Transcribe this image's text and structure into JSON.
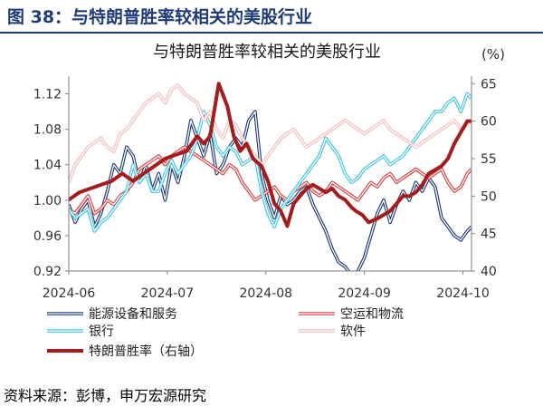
{
  "figure_title": "图 38：与特朗普胜率较相关的美股行业",
  "source": "资料来源：彭博，申万宏源研究",
  "chart_data": {
    "type": "line",
    "title": "与特朗普胜率较相关的美股行业",
    "x_ticks": [
      "2024-06",
      "2024-07",
      "2024-08",
      "2024-09",
      "2024-10"
    ],
    "y_left": {
      "lim": [
        0.92,
        1.14
      ],
      "ticks": [
        0.92,
        0.96,
        1.0,
        1.04,
        1.08,
        1.12
      ]
    },
    "y_right": {
      "unit": "(%)",
      "lim": [
        40,
        66
      ],
      "ticks": [
        40,
        45,
        50,
        55,
        60,
        65
      ]
    },
    "series": [
      {
        "name": "能源设备和服务",
        "axis": "left",
        "color": "#1f3b78",
        "values": [
          [
            0,
            0.995
          ],
          [
            3,
            0.975
          ],
          [
            6,
            0.99
          ],
          [
            9,
            1.0
          ],
          [
            12,
            0.97
          ],
          [
            15,
            0.985
          ],
          [
            18,
            1.01
          ],
          [
            21,
            1.04
          ],
          [
            24,
            1.03
          ],
          [
            27,
            1.06
          ],
          [
            30,
            1.05
          ],
          [
            33,
            1.02
          ],
          [
            36,
            1.04
          ],
          [
            39,
            1.01
          ],
          [
            42,
            1.03
          ],
          [
            45,
            1.0
          ],
          [
            48,
            1.04
          ],
          [
            51,
            1.02
          ],
          [
            54,
            1.05
          ],
          [
            57,
            1.09
          ],
          [
            60,
            1.07
          ],
          [
            63,
            1.05
          ],
          [
            66,
            1.075
          ],
          [
            69,
            1.03
          ],
          [
            72,
            1.04
          ],
          [
            75,
            1.06
          ],
          [
            78,
            1.07
          ],
          [
            81,
            1.06
          ],
          [
            84,
            1.09
          ],
          [
            87,
            1.1
          ],
          [
            90,
            1.03
          ],
          [
            93,
            1.0
          ],
          [
            96,
            0.98
          ],
          [
            99,
            1.005
          ],
          [
            102,
            0.995
          ],
          [
            105,
            1.0
          ],
          [
            108,
            1.01
          ],
          [
            111,
            1.015
          ],
          [
            114,
            0.995
          ],
          [
            117,
            0.98
          ],
          [
            120,
            0.965
          ],
          [
            123,
            0.945
          ],
          [
            126,
            0.93
          ],
          [
            129,
            0.925
          ],
          [
            132,
            0.915
          ],
          [
            135,
            0.92
          ],
          [
            138,
            0.935
          ],
          [
            141,
            0.96
          ],
          [
            144,
            0.985
          ],
          [
            147,
            1.0
          ],
          [
            150,
            0.975
          ],
          [
            153,
            0.995
          ],
          [
            156,
            1.01
          ],
          [
            159,
            1.0
          ],
          [
            162,
            1.02
          ],
          [
            165,
            1.01
          ],
          [
            168,
            1.025
          ],
          [
            171,
            1.015
          ],
          [
            174,
            0.98
          ],
          [
            177,
            0.97
          ],
          [
            180,
            0.96
          ],
          [
            183,
            0.955
          ],
          [
            186,
            0.965
          ],
          [
            188,
            0.97
          ]
        ]
      },
      {
        "name": "空运和物流",
        "axis": "left",
        "color": "#d94040",
        "values": [
          [
            0,
            0.99
          ],
          [
            3,
            0.985
          ],
          [
            6,
            0.995
          ],
          [
            9,
            1.005
          ],
          [
            12,
            0.985
          ],
          [
            15,
            0.99
          ],
          [
            18,
            1.0
          ],
          [
            21,
            0.995
          ],
          [
            24,
            1.005
          ],
          [
            27,
            1.01
          ],
          [
            30,
            1.02
          ],
          [
            33,
            1.035
          ],
          [
            36,
            1.04
          ],
          [
            39,
            1.045
          ],
          [
            42,
            1.05
          ],
          [
            45,
            1.04
          ],
          [
            48,
            1.05
          ],
          [
            51,
            1.055
          ],
          [
            54,
            1.06
          ],
          [
            57,
            1.055
          ],
          [
            60,
            1.05
          ],
          [
            63,
            1.045
          ],
          [
            66,
            1.04
          ],
          [
            69,
            1.035
          ],
          [
            72,
            1.03
          ],
          [
            75,
            1.04
          ],
          [
            78,
            1.035
          ],
          [
            81,
            1.02
          ],
          [
            84,
            1.01
          ],
          [
            87,
            1.0
          ],
          [
            90,
            1.005
          ],
          [
            93,
            1.01
          ],
          [
            96,
            1.015
          ],
          [
            99,
            1.005
          ],
          [
            102,
            1.0
          ],
          [
            105,
            1.01
          ],
          [
            108,
            1.015
          ],
          [
            111,
            1.02
          ],
          [
            114,
            1.01
          ],
          [
            117,
            1.005
          ],
          [
            120,
            1.01
          ],
          [
            123,
            1.02
          ],
          [
            126,
            1.015
          ],
          [
            129,
            1.01
          ],
          [
            132,
            1.005
          ],
          [
            135,
            1.0
          ],
          [
            138,
            1.01
          ],
          [
            141,
            1.02
          ],
          [
            144,
            1.015
          ],
          [
            147,
            1.025
          ],
          [
            150,
            1.03
          ],
          [
            153,
            1.02
          ],
          [
            156,
            1.025
          ],
          [
            159,
            1.03
          ],
          [
            162,
            1.035
          ],
          [
            165,
            1.03
          ],
          [
            168,
            1.025
          ],
          [
            171,
            1.03
          ],
          [
            174,
            1.035
          ],
          [
            177,
            1.02
          ],
          [
            180,
            1.01
          ],
          [
            183,
            1.015
          ],
          [
            186,
            1.03
          ],
          [
            188,
            1.035
          ]
        ]
      },
      {
        "name": "银行",
        "axis": "left",
        "color": "#3ec6df",
        "values": [
          [
            0,
            0.99
          ],
          [
            3,
            0.98
          ],
          [
            6,
            0.985
          ],
          [
            9,
            0.99
          ],
          [
            12,
            0.965
          ],
          [
            15,
            0.975
          ],
          [
            18,
            0.98
          ],
          [
            21,
            0.99
          ],
          [
            24,
            1.0
          ],
          [
            27,
            1.01
          ],
          [
            30,
            1.04
          ],
          [
            33,
            1.02
          ],
          [
            36,
            1.03
          ],
          [
            39,
            1.01
          ],
          [
            42,
            1.01
          ],
          [
            45,
            1.03
          ],
          [
            48,
            1.045
          ],
          [
            51,
            1.03
          ],
          [
            54,
            1.04
          ],
          [
            57,
            1.05
          ],
          [
            60,
            1.07
          ],
          [
            63,
            1.1
          ],
          [
            66,
            1.085
          ],
          [
            69,
            1.06
          ],
          [
            72,
            1.05
          ],
          [
            75,
            1.06
          ],
          [
            78,
            1.055
          ],
          [
            81,
            1.04
          ],
          [
            84,
            1.045
          ],
          [
            87,
            1.05
          ],
          [
            90,
            1.01
          ],
          [
            93,
            0.985
          ],
          [
            96,
            0.97
          ],
          [
            99,
            0.99
          ],
          [
            102,
            1.0
          ],
          [
            105,
            1.01
          ],
          [
            108,
            1.02
          ],
          [
            111,
            1.03
          ],
          [
            114,
            1.04
          ],
          [
            117,
            1.05
          ],
          [
            120,
            1.07
          ],
          [
            123,
            1.06
          ],
          [
            126,
            1.05
          ],
          [
            129,
            1.03
          ],
          [
            132,
            1.02
          ],
          [
            135,
            1.025
          ],
          [
            138,
            1.035
          ],
          [
            141,
            1.04
          ],
          [
            144,
            1.045
          ],
          [
            147,
            1.05
          ],
          [
            150,
            1.04
          ],
          [
            153,
            1.045
          ],
          [
            156,
            1.05
          ],
          [
            159,
            1.06
          ],
          [
            162,
            1.07
          ],
          [
            165,
            1.08
          ],
          [
            168,
            1.09
          ],
          [
            171,
            1.1
          ],
          [
            174,
            1.1
          ],
          [
            177,
            1.11
          ],
          [
            180,
            1.115
          ],
          [
            183,
            1.1
          ],
          [
            186,
            1.12
          ],
          [
            188,
            1.115
          ]
        ]
      },
      {
        "name": "软件",
        "axis": "left",
        "color": "#f2bcbc",
        "values": [
          [
            0,
            1.02
          ],
          [
            3,
            1.04
          ],
          [
            6,
            1.05
          ],
          [
            9,
            1.06
          ],
          [
            12,
            1.065
          ],
          [
            15,
            1.07
          ],
          [
            18,
            1.06
          ],
          [
            21,
            1.055
          ],
          [
            24,
            1.075
          ],
          [
            27,
            1.08
          ],
          [
            30,
            1.09
          ],
          [
            33,
            1.1
          ],
          [
            36,
            1.11
          ],
          [
            39,
            1.115
          ],
          [
            42,
            1.12
          ],
          [
            45,
            1.11
          ],
          [
            48,
            1.125
          ],
          [
            51,
            1.13
          ],
          [
            54,
            1.12
          ],
          [
            57,
            1.115
          ],
          [
            60,
            1.11
          ],
          [
            63,
            1.09
          ],
          [
            66,
            1.1
          ],
          [
            69,
            1.08
          ],
          [
            72,
            1.07
          ],
          [
            75,
            1.09
          ],
          [
            78,
            1.085
          ],
          [
            81,
            1.07
          ],
          [
            84,
            1.06
          ],
          [
            87,
            1.05
          ],
          [
            90,
            1.04
          ],
          [
            93,
            1.05
          ],
          [
            96,
            1.06
          ],
          [
            99,
            1.07
          ],
          [
            102,
            1.075
          ],
          [
            105,
            1.08
          ],
          [
            108,
            1.07
          ],
          [
            111,
            1.06
          ],
          [
            114,
            1.065
          ],
          [
            117,
            1.07
          ],
          [
            120,
            1.075
          ],
          [
            123,
            1.08
          ],
          [
            126,
            1.085
          ],
          [
            129,
            1.09
          ],
          [
            132,
            1.085
          ],
          [
            135,
            1.08
          ],
          [
            138,
            1.075
          ],
          [
            141,
            1.08
          ],
          [
            144,
            1.085
          ],
          [
            147,
            1.09
          ],
          [
            150,
            1.08
          ],
          [
            153,
            1.075
          ],
          [
            156,
            1.07
          ],
          [
            159,
            1.065
          ],
          [
            162,
            1.06
          ],
          [
            165,
            1.065
          ],
          [
            168,
            1.07
          ],
          [
            171,
            1.075
          ],
          [
            174,
            1.08
          ],
          [
            177,
            1.085
          ],
          [
            180,
            1.09
          ],
          [
            183,
            1.08
          ],
          [
            186,
            1.085
          ],
          [
            188,
            1.09
          ]
        ]
      },
      {
        "name": "特朗普胜率（右轴）",
        "axis": "right",
        "color": "#a51c1c",
        "values": [
          [
            0,
            49.5
          ],
          [
            5,
            50.5
          ],
          [
            10,
            51
          ],
          [
            15,
            51.5
          ],
          [
            20,
            52
          ],
          [
            25,
            53
          ],
          [
            30,
            52
          ],
          [
            35,
            53
          ],
          [
            40,
            54
          ],
          [
            45,
            55
          ],
          [
            50,
            55.5
          ],
          [
            55,
            56
          ],
          [
            60,
            58
          ],
          [
            63,
            57
          ],
          [
            66,
            58
          ],
          [
            70,
            65
          ],
          [
            74,
            62
          ],
          [
            77,
            58
          ],
          [
            80,
            56
          ],
          [
            83,
            57
          ],
          [
            86,
            55
          ],
          [
            90,
            54
          ],
          [
            93,
            52
          ],
          [
            96,
            49
          ],
          [
            99,
            48
          ],
          [
            102,
            46
          ],
          [
            105,
            49
          ],
          [
            108,
            50
          ],
          [
            111,
            51
          ],
          [
            114,
            51.5
          ],
          [
            117,
            51
          ],
          [
            120,
            50.5
          ],
          [
            123,
            51
          ],
          [
            126,
            50
          ],
          [
            129,
            49.5
          ],
          [
            132,
            48.5
          ],
          [
            134,
            48
          ],
          [
            137,
            47.5
          ],
          [
            140,
            46.5
          ],
          [
            144,
            47
          ],
          [
            147,
            47.5
          ],
          [
            150,
            48
          ],
          [
            153,
            49
          ],
          [
            156,
            50
          ],
          [
            159,
            50
          ],
          [
            162,
            50.5
          ],
          [
            165,
            51.5
          ],
          [
            168,
            53
          ],
          [
            171,
            53.5
          ],
          [
            174,
            54
          ],
          [
            177,
            55
          ],
          [
            180,
            57
          ],
          [
            183,
            58.5
          ],
          [
            186,
            60
          ],
          [
            188,
            60
          ]
        ]
      }
    ],
    "legend": [
      {
        "label": "能源设备和服务",
        "color": "#1f3b78",
        "style": "double"
      },
      {
        "label": "空运和物流",
        "color": "#d94040",
        "style": "double"
      },
      {
        "label": "银行",
        "color": "#3ec6df",
        "style": "double"
      },
      {
        "label": "软件",
        "color": "#f2bcbc",
        "style": "double"
      },
      {
        "label": "特朗普胜率（右轴）",
        "color": "#a51c1c",
        "style": "thick"
      }
    ]
  }
}
